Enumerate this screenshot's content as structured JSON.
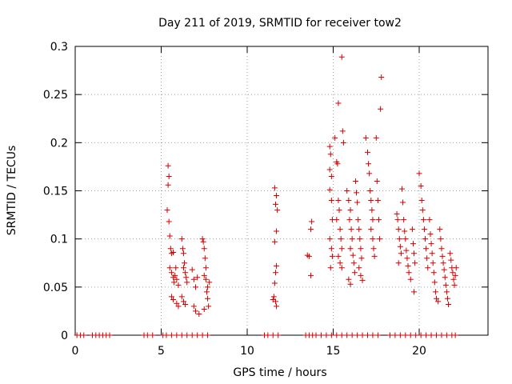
{
  "chart_data": {
    "type": "scatter",
    "title": "Day 211 of 2019, SRMTID for receiver tow2",
    "xlabel": "GPS time / hours",
    "ylabel": "SRMTID / TECUs",
    "xlim": [
      0,
      24
    ],
    "ylim": [
      0,
      0.3
    ],
    "xticks": [
      0,
      5,
      10,
      15,
      20
    ],
    "yticks": [
      0,
      0.05,
      0.1,
      0.15,
      0.2,
      0.25,
      0.3
    ],
    "grid": true,
    "series": [
      {
        "name": "SRMTID",
        "color": "#d40000",
        "marker": "+",
        "points": [
          [
            0.1,
            0
          ],
          [
            0.3,
            0
          ],
          [
            0.5,
            0
          ],
          [
            1.0,
            0
          ],
          [
            1.2,
            0
          ],
          [
            1.4,
            0
          ],
          [
            1.6,
            0
          ],
          [
            1.8,
            0
          ],
          [
            2.0,
            0
          ],
          [
            4.0,
            0
          ],
          [
            4.2,
            0
          ],
          [
            4.5,
            0
          ],
          [
            5.1,
            0
          ],
          [
            5.3,
            0
          ],
          [
            5.6,
            0
          ],
          [
            5.9,
            0
          ],
          [
            6.2,
            0
          ],
          [
            6.5,
            0
          ],
          [
            6.8,
            0
          ],
          [
            7.1,
            0
          ],
          [
            7.4,
            0
          ],
          [
            7.7,
            0
          ],
          [
            11.0,
            0
          ],
          [
            11.2,
            0
          ],
          [
            11.5,
            0
          ],
          [
            11.8,
            0
          ],
          [
            13.4,
            0
          ],
          [
            13.6,
            0
          ],
          [
            13.8,
            0
          ],
          [
            14.0,
            0
          ],
          [
            14.3,
            0
          ],
          [
            14.6,
            0
          ],
          [
            14.9,
            0
          ],
          [
            15.2,
            0
          ],
          [
            15.5,
            0
          ],
          [
            15.8,
            0
          ],
          [
            16.1,
            0
          ],
          [
            16.4,
            0
          ],
          [
            16.7,
            0
          ],
          [
            17.0,
            0
          ],
          [
            17.3,
            0
          ],
          [
            17.6,
            0
          ],
          [
            18.3,
            0
          ],
          [
            18.6,
            0
          ],
          [
            18.9,
            0
          ],
          [
            19.2,
            0
          ],
          [
            19.5,
            0
          ],
          [
            19.8,
            0
          ],
          [
            20.1,
            0
          ],
          [
            20.4,
            0
          ],
          [
            20.7,
            0
          ],
          [
            21.0,
            0
          ],
          [
            21.3,
            0
          ],
          [
            21.6,
            0
          ],
          [
            21.9,
            0
          ],
          [
            22.1,
            0
          ],
          [
            5.4,
            0.176
          ],
          [
            5.45,
            0.165
          ],
          [
            5.4,
            0.156
          ],
          [
            5.35,
            0.13
          ],
          [
            5.45,
            0.118
          ],
          [
            5.5,
            0.103
          ],
          [
            5.55,
            0.09
          ],
          [
            5.6,
            0.085
          ],
          [
            5.7,
            0.086
          ],
          [
            5.5,
            0.07
          ],
          [
            5.6,
            0.065
          ],
          [
            5.7,
            0.06
          ],
          [
            5.75,
            0.055
          ],
          [
            5.8,
            0.062
          ],
          [
            5.85,
            0.07
          ],
          [
            5.9,
            0.058
          ],
          [
            6.0,
            0.052
          ],
          [
            5.6,
            0.04
          ],
          [
            5.7,
            0.037
          ],
          [
            5.9,
            0.033
          ],
          [
            6.0,
            0.03
          ],
          [
            6.2,
            0.1
          ],
          [
            6.25,
            0.09
          ],
          [
            6.3,
            0.085
          ],
          [
            6.35,
            0.075
          ],
          [
            6.3,
            0.07
          ],
          [
            6.4,
            0.065
          ],
          [
            6.45,
            0.06
          ],
          [
            6.5,
            0.055
          ],
          [
            6.2,
            0.04
          ],
          [
            6.3,
            0.035
          ],
          [
            6.4,
            0.032
          ],
          [
            6.8,
            0.068
          ],
          [
            6.9,
            0.058
          ],
          [
            7.0,
            0.05
          ],
          [
            7.1,
            0.06
          ],
          [
            6.9,
            0.03
          ],
          [
            7.0,
            0.025
          ],
          [
            7.2,
            0.022
          ],
          [
            7.4,
            0.1
          ],
          [
            7.45,
            0.097
          ],
          [
            7.5,
            0.09
          ],
          [
            7.55,
            0.08
          ],
          [
            7.6,
            0.07
          ],
          [
            7.5,
            0.062
          ],
          [
            7.6,
            0.058
          ],
          [
            7.7,
            0.05
          ],
          [
            7.65,
            0.045
          ],
          [
            7.7,
            0.038
          ],
          [
            7.8,
            0.055
          ],
          [
            7.75,
            0.03
          ],
          [
            7.5,
            0.027
          ],
          [
            11.6,
            0.153
          ],
          [
            11.7,
            0.145
          ],
          [
            11.65,
            0.136
          ],
          [
            11.75,
            0.13
          ],
          [
            11.7,
            0.108
          ],
          [
            11.6,
            0.097
          ],
          [
            11.7,
            0.072
          ],
          [
            11.65,
            0.065
          ],
          [
            11.6,
            0.054
          ],
          [
            11.55,
            0.04
          ],
          [
            11.65,
            0.035
          ],
          [
            11.7,
            0.03
          ],
          [
            11.5,
            0.037
          ],
          [
            13.5,
            0.083
          ],
          [
            13.6,
            0.082
          ],
          [
            13.7,
            0.062
          ],
          [
            13.75,
            0.118
          ],
          [
            13.7,
            0.11
          ],
          [
            14.8,
            0.196
          ],
          [
            14.85,
            0.188
          ],
          [
            14.8,
            0.172
          ],
          [
            14.9,
            0.165
          ],
          [
            14.8,
            0.151
          ],
          [
            14.9,
            0.14
          ],
          [
            14.95,
            0.12
          ],
          [
            14.8,
            0.1
          ],
          [
            14.9,
            0.09
          ],
          [
            14.95,
            0.082
          ],
          [
            14.85,
            0.07
          ],
          [
            15.1,
            0.205
          ],
          [
            15.2,
            0.18
          ],
          [
            15.25,
            0.178
          ],
          [
            15.3,
            0.14
          ],
          [
            15.35,
            0.13
          ],
          [
            15.2,
            0.12
          ],
          [
            15.4,
            0.11
          ],
          [
            15.45,
            0.1
          ],
          [
            15.5,
            0.09
          ],
          [
            15.3,
            0.082
          ],
          [
            15.4,
            0.075
          ],
          [
            15.5,
            0.07
          ],
          [
            15.5,
            0.289
          ],
          [
            15.3,
            0.241
          ],
          [
            15.55,
            0.212
          ],
          [
            15.6,
            0.2
          ],
          [
            15.8,
            0.15
          ],
          [
            15.9,
            0.14
          ],
          [
            16.0,
            0.13
          ],
          [
            15.95,
            0.12
          ],
          [
            16.05,
            0.11
          ],
          [
            16.1,
            0.1
          ],
          [
            16.0,
            0.09
          ],
          [
            16.15,
            0.083
          ],
          [
            16.2,
            0.075
          ],
          [
            16.25,
            0.065
          ],
          [
            15.9,
            0.058
          ],
          [
            16.0,
            0.053
          ],
          [
            16.3,
            0.16
          ],
          [
            16.35,
            0.148
          ],
          [
            16.4,
            0.138
          ],
          [
            16.45,
            0.12
          ],
          [
            16.5,
            0.11
          ],
          [
            16.55,
            0.1
          ],
          [
            16.6,
            0.09
          ],
          [
            16.65,
            0.08
          ],
          [
            16.5,
            0.07
          ],
          [
            16.6,
            0.062
          ],
          [
            16.7,
            0.057
          ],
          [
            16.9,
            0.205
          ],
          [
            17.0,
            0.19
          ],
          [
            17.05,
            0.178
          ],
          [
            17.1,
            0.168
          ],
          [
            17.15,
            0.15
          ],
          [
            17.2,
            0.14
          ],
          [
            17.25,
            0.13
          ],
          [
            17.3,
            0.12
          ],
          [
            17.2,
            0.11
          ],
          [
            17.3,
            0.1
          ],
          [
            17.35,
            0.09
          ],
          [
            17.4,
            0.082
          ],
          [
            17.5,
            0.205
          ],
          [
            17.55,
            0.16
          ],
          [
            17.6,
            0.14
          ],
          [
            17.65,
            0.12
          ],
          [
            17.7,
            0.1
          ],
          [
            17.8,
            0.268
          ],
          [
            17.75,
            0.235
          ],
          [
            18.7,
            0.126
          ],
          [
            18.75,
            0.12
          ],
          [
            18.8,
            0.11
          ],
          [
            18.85,
            0.1
          ],
          [
            18.9,
            0.092
          ],
          [
            18.95,
            0.085
          ],
          [
            18.8,
            0.075
          ],
          [
            19.0,
            0.152
          ],
          [
            19.05,
            0.138
          ],
          [
            19.1,
            0.12
          ],
          [
            19.15,
            0.108
          ],
          [
            19.2,
            0.1
          ],
          [
            19.25,
            0.088
          ],
          [
            19.3,
            0.08
          ],
          [
            19.35,
            0.072
          ],
          [
            19.4,
            0.065
          ],
          [
            19.5,
            0.058
          ],
          [
            19.6,
            0.11
          ],
          [
            19.65,
            0.095
          ],
          [
            19.7,
            0.085
          ],
          [
            19.75,
            0.075
          ],
          [
            19.7,
            0.045
          ],
          [
            20.0,
            0.168
          ],
          [
            20.1,
            0.155
          ],
          [
            20.15,
            0.14
          ],
          [
            20.2,
            0.13
          ],
          [
            20.25,
            0.12
          ],
          [
            20.3,
            0.11
          ],
          [
            20.35,
            0.1
          ],
          [
            20.4,
            0.09
          ],
          [
            20.45,
            0.08
          ],
          [
            20.5,
            0.07
          ],
          [
            20.6,
            0.12
          ],
          [
            20.65,
            0.105
          ],
          [
            20.7,
            0.095
          ],
          [
            20.75,
            0.085
          ],
          [
            20.8,
            0.075
          ],
          [
            20.85,
            0.065
          ],
          [
            20.9,
            0.055
          ],
          [
            20.95,
            0.045
          ],
          [
            21.0,
            0.038
          ],
          [
            21.1,
            0.035
          ],
          [
            21.2,
            0.11
          ],
          [
            21.25,
            0.1
          ],
          [
            21.3,
            0.09
          ],
          [
            21.35,
            0.082
          ],
          [
            21.4,
            0.075
          ],
          [
            21.45,
            0.068
          ],
          [
            21.5,
            0.06
          ],
          [
            21.55,
            0.052
          ],
          [
            21.6,
            0.045
          ],
          [
            21.65,
            0.038
          ],
          [
            21.7,
            0.032
          ],
          [
            21.8,
            0.085
          ],
          [
            21.85,
            0.078
          ],
          [
            21.9,
            0.07
          ],
          [
            21.95,
            0.065
          ],
          [
            22.0,
            0.058
          ],
          [
            22.05,
            0.052
          ],
          [
            22.1,
            0.062
          ],
          [
            22.15,
            0.07
          ]
        ]
      }
    ]
  }
}
